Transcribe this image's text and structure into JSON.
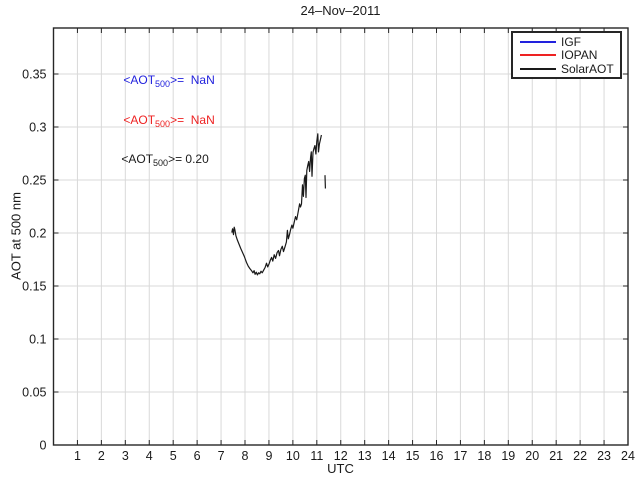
{
  "chart_data": {
    "type": "line",
    "title": "24–Nov–2011",
    "xlabel": "UTC",
    "ylabel": "AOT at 500 nm",
    "xlim": [
      0,
      24
    ],
    "ylim": [
      0,
      0.3934
    ],
    "xticks": [
      1,
      2,
      3,
      4,
      5,
      6,
      7,
      8,
      9,
      10,
      11,
      12,
      13,
      14,
      15,
      16,
      17,
      18,
      19,
      20,
      21,
      22,
      23,
      24
    ],
    "yticks": [
      0,
      0.05,
      0.1,
      0.15,
      0.2,
      0.25,
      0.3,
      0.35
    ],
    "ytick_labels": [
      "0",
      "0.05",
      "0.1",
      "0.15",
      "0.2",
      "0.25",
      "0.3",
      "0.35"
    ],
    "grid": true,
    "grid_color": "#d9d9d9",
    "axis_color": "#262626",
    "legend": {
      "position": "top-right",
      "entries": [
        {
          "label": "IGF",
          "color": "#2222dd"
        },
        {
          "label": "IOPAN",
          "color": "#ee2222"
        },
        {
          "label": "SolarAOT",
          "color": "#1a1a1a"
        }
      ]
    },
    "series": [
      {
        "name": "IGF",
        "color": "#2222dd",
        "segments": []
      },
      {
        "name": "IOPAN",
        "color": "#ee2222",
        "segments": []
      },
      {
        "name": "SolarAOT",
        "color": "#1a1a1a",
        "segments": [
          [
            [
              7.45,
              0.2005
            ],
            [
              7.48,
              0.204
            ],
            [
              7.52,
              0.1985
            ],
            [
              7.55,
              0.2055
            ],
            [
              7.58,
              0.203
            ],
            [
              7.62,
              0.1975
            ],
            [
              7.68,
              0.1935
            ],
            [
              7.75,
              0.1895
            ],
            [
              7.82,
              0.1855
            ],
            [
              7.9,
              0.1815
            ],
            [
              7.98,
              0.1775
            ],
            [
              8.06,
              0.1725
            ],
            [
              8.13,
              0.169
            ],
            [
              8.2,
              0.1665
            ],
            [
              8.27,
              0.1645
            ],
            [
              8.33,
              0.1625
            ],
            [
              8.38,
              0.1645
            ],
            [
              8.42,
              0.161
            ],
            [
              8.47,
              0.163
            ],
            [
              8.52,
              0.1605
            ],
            [
              8.57,
              0.1625
            ],
            [
              8.62,
              0.1615
            ],
            [
              8.67,
              0.164
            ],
            [
              8.72,
              0.1625
            ],
            [
              8.78,
              0.165
            ],
            [
              8.84,
              0.1675
            ],
            [
              8.9,
              0.1715
            ],
            [
              8.95,
              0.168
            ],
            [
              9.0,
              0.1705
            ],
            [
              9.06,
              0.1745
            ],
            [
              9.11,
              0.177
            ],
            [
              9.16,
              0.1735
            ],
            [
              9.22,
              0.1795
            ],
            [
              9.28,
              0.176
            ],
            [
              9.34,
              0.1815
            ],
            [
              9.4,
              0.1835
            ],
            [
              9.44,
              0.1785
            ],
            [
              9.5,
              0.1845
            ],
            [
              9.56,
              0.1875
            ],
            [
              9.61,
              0.1825
            ],
            [
              9.67,
              0.187
            ],
            [
              9.73,
              0.1915
            ],
            [
              9.77,
              0.2025
            ],
            [
              9.81,
              0.1945
            ],
            [
              9.86,
              0.1985
            ],
            [
              9.91,
              0.2035
            ],
            [
              9.96,
              0.2075
            ],
            [
              10.0,
              0.2045
            ],
            [
              10.06,
              0.2105
            ],
            [
              10.11,
              0.2155
            ],
            [
              10.16,
              0.2125
            ],
            [
              10.22,
              0.2195
            ],
            [
              10.28,
              0.2275
            ],
            [
              10.32,
              0.2245
            ],
            [
              10.36,
              0.2275
            ],
            [
              10.4,
              0.2455
            ],
            [
              10.44,
              0.2345
            ],
            [
              10.48,
              0.2515
            ],
            [
              10.52,
              0.2545
            ],
            [
              10.55,
              0.2335
            ],
            [
              10.58,
              0.259
            ],
            [
              10.62,
              0.2635
            ],
            [
              10.66,
              0.2675
            ],
            [
              10.7,
              0.258
            ],
            [
              10.74,
              0.2715
            ],
            [
              10.77,
              0.2765
            ],
            [
              10.8,
              0.2535
            ],
            [
              10.84,
              0.276
            ],
            [
              10.88,
              0.2795
            ],
            [
              10.92,
              0.2825
            ],
            [
              10.96,
              0.2745
            ],
            [
              11.0,
              0.2865
            ],
            [
              11.04,
              0.2935
            ],
            [
              11.07,
              0.2765
            ],
            [
              11.11,
              0.284
            ],
            [
              11.15,
              0.288
            ],
            [
              11.19,
              0.2925
            ]
          ],
          [
            [
              11.34,
              0.2545
            ],
            [
              11.36,
              0.242
            ]
          ]
        ]
      }
    ]
  },
  "annotations": [
    {
      "pre": "<AOT",
      "sub": "500",
      "post": ">=  NaN",
      "color": "#2222dd"
    },
    {
      "pre": "<AOT",
      "sub": "500",
      "post": ">=  NaN",
      "color": "#ee2222"
    },
    {
      "pre": "<AOT",
      "sub": "500",
      "post": ">= 0.20",
      "color": "#1a1a1a"
    }
  ]
}
